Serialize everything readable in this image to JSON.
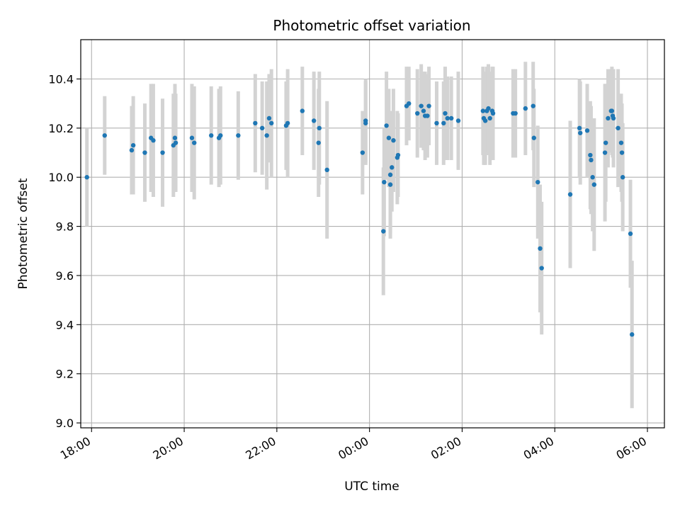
{
  "chart_data": {
    "type": "scatter",
    "title": "Photometric offset variation",
    "xlabel": "UTC time",
    "ylabel": "Photometric offset",
    "grid": true,
    "x_is_time": true,
    "x_ticks": [
      "18:00",
      "20:00",
      "22:00",
      "00:00",
      "02:00",
      "04:00",
      "06:00"
    ],
    "y_ticks": [
      "9.0",
      "9.2",
      "9.4",
      "9.6",
      "9.8",
      "10.0",
      "10.2",
      "10.4"
    ],
    "xlim": [
      "17:46",
      "06:22"
    ],
    "ylim": [
      8.98,
      10.56
    ],
    "colors": {
      "points": "#1f77b4",
      "errorbars": "#d3d3d3",
      "grid": "#b0b0b0"
    },
    "series": [
      {
        "x": [
          "17:54",
          "18:17",
          "18:52",
          "18:54",
          "19:09",
          "19:17",
          "19:20",
          "19:32",
          "19:46",
          "19:48",
          "19:49",
          "20:10",
          "20:13",
          "20:35",
          "20:45",
          "20:47",
          "21:10",
          "21:32",
          "21:41",
          "21:47",
          "21:50",
          "21:53",
          "22:12",
          "22:14",
          "22:33",
          "22:48",
          "22:54",
          "22:55",
          "23:05",
          "23:51",
          "23:55",
          "23:55",
          "00:18",
          "00:19",
          "00:22",
          "00:25",
          "00:27",
          "00:27",
          "00:29",
          "00:31",
          "00:36",
          "00:37",
          "00:48",
          "00:51",
          "01:02",
          "01:07",
          "01:10",
          "01:12",
          "01:15",
          "01:17",
          "01:27",
          "01:36",
          "01:38",
          "01:41",
          "01:46",
          "01:55",
          "02:27",
          "02:28",
          "02:30",
          "02:32",
          "02:34",
          "02:36",
          "02:39",
          "02:40",
          "03:06",
          "03:09",
          "03:22",
          "03:32",
          "03:33",
          "03:38",
          "03:41",
          "03:43",
          "04:20",
          "04:32",
          "04:33",
          "04:42",
          "04:46",
          "04:47",
          "04:49",
          "04:51",
          "05:05",
          "05:06",
          "05:09",
          "05:13",
          "05:14",
          "05:15",
          "05:16",
          "05:22",
          "05:26",
          "05:27",
          "05:28",
          "05:38",
          "05:40"
        ],
        "y": [
          10.0,
          10.17,
          10.11,
          10.13,
          10.1,
          10.16,
          10.15,
          10.1,
          10.13,
          10.16,
          10.14,
          10.16,
          10.14,
          10.17,
          10.16,
          10.17,
          10.17,
          10.22,
          10.2,
          10.17,
          10.24,
          10.22,
          10.21,
          10.22,
          10.27,
          10.23,
          10.14,
          10.2,
          10.03,
          10.1,
          10.22,
          10.23,
          9.78,
          9.98,
          10.21,
          10.16,
          10.01,
          9.97,
          10.04,
          10.15,
          10.08,
          10.09,
          10.29,
          10.3,
          10.26,
          10.29,
          10.27,
          10.25,
          10.25,
          10.29,
          10.22,
          10.22,
          10.26,
          10.24,
          10.24,
          10.23,
          10.27,
          10.24,
          10.23,
          10.27,
          10.28,
          10.24,
          10.27,
          10.26,
          10.26,
          10.26,
          10.28,
          10.29,
          10.16,
          9.98,
          9.71,
          9.63,
          9.93,
          10.2,
          10.18,
          10.19,
          10.09,
          10.07,
          10.0,
          9.97,
          10.1,
          10.14,
          10.24,
          10.27,
          10.27,
          10.25,
          10.24,
          10.2,
          10.14,
          10.1,
          10.0,
          9.77,
          9.36
        ],
        "yerr": [
          0.2,
          0.16,
          0.18,
          0.2,
          0.2,
          0.22,
          0.23,
          0.22,
          0.21,
          0.22,
          0.2,
          0.22,
          0.23,
          0.2,
          0.2,
          0.2,
          0.18,
          0.2,
          0.19,
          0.22,
          0.18,
          0.22,
          0.18,
          0.22,
          0.18,
          0.2,
          0.22,
          0.23,
          0.28,
          0.17,
          0.17,
          0.17,
          0.26,
          0.22,
          0.22,
          0.2,
          0.26,
          0.2,
          0.18,
          0.21,
          0.19,
          0.17,
          0.16,
          0.15,
          0.18,
          0.17,
          0.16,
          0.18,
          0.17,
          0.16,
          0.17,
          0.17,
          0.19,
          0.17,
          0.17,
          0.2,
          0.18,
          0.19,
          0.18,
          0.18,
          0.18,
          0.19,
          0.18,
          0.19,
          0.18,
          0.18,
          0.19,
          0.18,
          0.2,
          0.23,
          0.26,
          0.27,
          0.3,
          0.2,
          0.21,
          0.19,
          0.22,
          0.22,
          0.22,
          0.27,
          0.28,
          0.24,
          0.2,
          0.17,
          0.18,
          0.17,
          0.2,
          0.24,
          0.2,
          0.2,
          0.22,
          0.22,
          0.3
        ]
      }
    ]
  }
}
